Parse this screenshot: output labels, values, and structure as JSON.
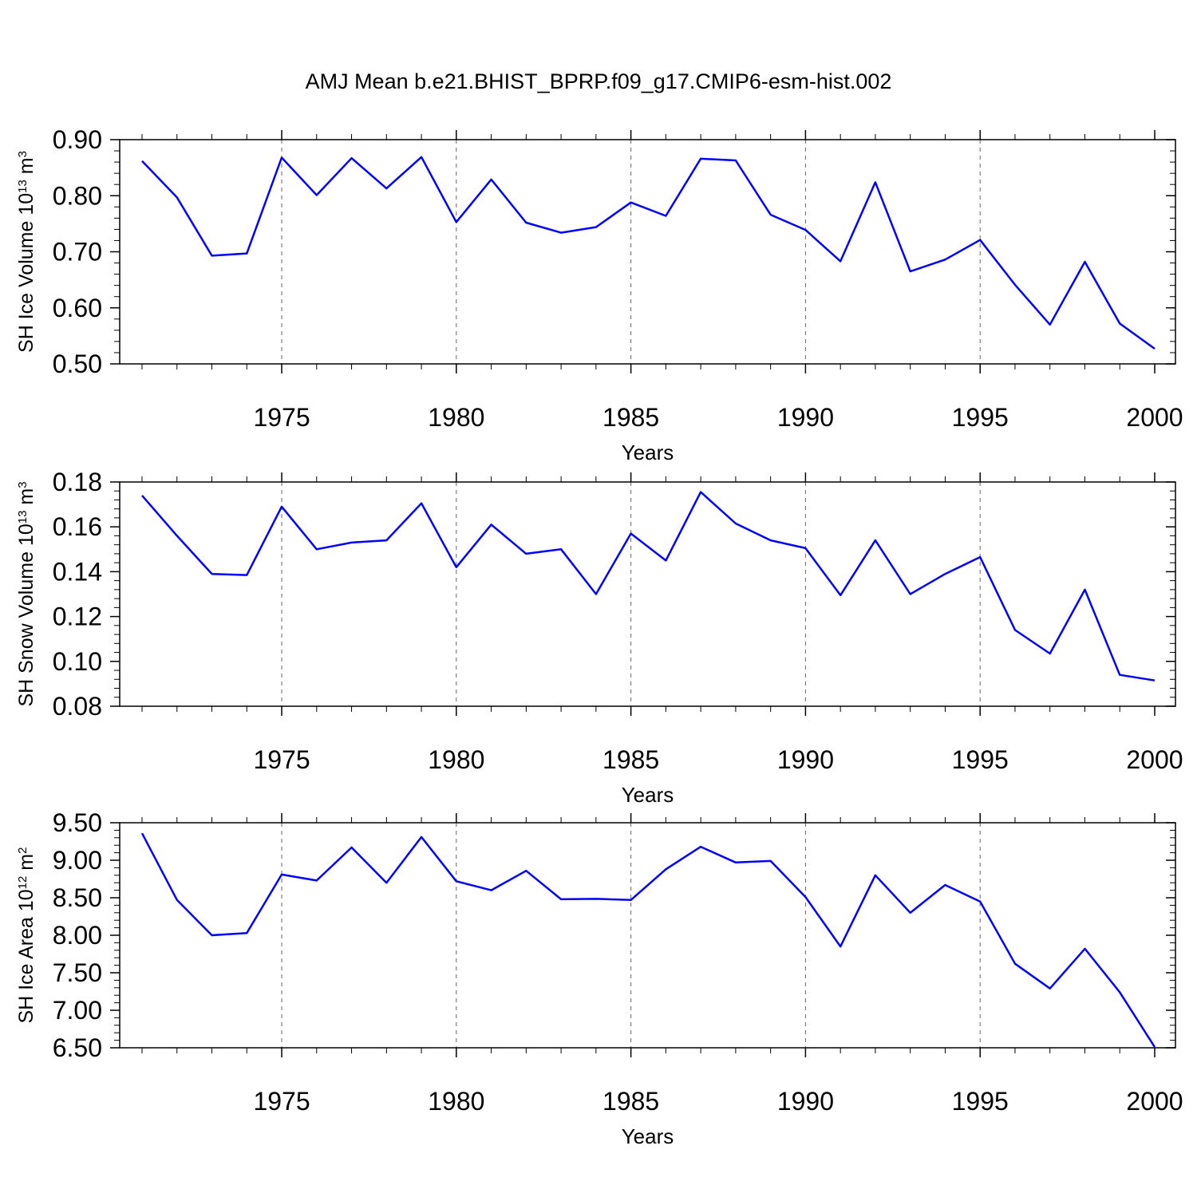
{
  "title": "AMJ Mean b.e21.BHIST_BPRP.f09_g17.CMIP6-esm-hist.002",
  "line_color": "#0000ff",
  "chart_data": [
    {
      "type": "line",
      "ylabel": {
        "text": "SH Ice Volume 10",
        "exp": "13",
        "unit": " m",
        "unit_exp": "3"
      },
      "xlabel": "Years",
      "xlim": [
        1971,
        2000
      ],
      "ylim": [
        0.5,
        0.9
      ],
      "yticks": [
        0.5,
        0.6,
        0.7,
        0.8,
        0.9
      ],
      "ytick_labels": [
        "0.50",
        "0.60",
        "0.70",
        "0.80",
        "0.90"
      ],
      "xticks": [
        1975,
        1980,
        1985,
        1990,
        1995,
        2000
      ],
      "xtick_labels": [
        "1975",
        "1980",
        "1985",
        "1990",
        "1995",
        "2000"
      ],
      "y_minor_step": 0.02,
      "grid": "x-dashed",
      "x": [
        1971,
        1972,
        1973,
        1974,
        1975,
        1976,
        1977,
        1978,
        1979,
        1980,
        1981,
        1982,
        1983,
        1984,
        1985,
        1986,
        1987,
        1988,
        1989,
        1990,
        1991,
        1992,
        1993,
        1994,
        1995,
        1996,
        1997,
        1998,
        1999,
        2000
      ],
      "y": [
        0.862,
        0.797,
        0.693,
        0.697,
        0.868,
        0.801,
        0.867,
        0.813,
        0.869,
        0.753,
        0.829,
        0.752,
        0.734,
        0.744,
        0.788,
        0.764,
        0.866,
        0.863,
        0.766,
        0.739,
        0.683,
        0.824,
        0.665,
        0.686,
        0.721,
        0.641,
        0.57,
        0.682,
        0.572,
        0.527
      ]
    },
    {
      "type": "line",
      "ylabel": {
        "text": "SH Snow Volume 10",
        "exp": "13",
        "unit": " m",
        "unit_exp": "3"
      },
      "xlabel": "Years",
      "xlim": [
        1971,
        2000
      ],
      "ylim": [
        0.08,
        0.18
      ],
      "yticks": [
        0.08,
        0.1,
        0.12,
        0.14,
        0.16,
        0.18
      ],
      "ytick_labels": [
        "0.08",
        "0.10",
        "0.12",
        "0.14",
        "0.16",
        "0.18"
      ],
      "xticks": [
        1975,
        1980,
        1985,
        1990,
        1995,
        2000
      ],
      "xtick_labels": [
        "1975",
        "1980",
        "1985",
        "1990",
        "1995",
        "2000"
      ],
      "y_minor_step": 0.004,
      "grid": "x-dashed",
      "x": [
        1971,
        1972,
        1973,
        1974,
        1975,
        1976,
        1977,
        1978,
        1979,
        1980,
        1981,
        1982,
        1983,
        1984,
        1985,
        1986,
        1987,
        1988,
        1989,
        1990,
        1991,
        1992,
        1993,
        1994,
        1995,
        1996,
        1997,
        1998,
        1999,
        2000
      ],
      "y": [
        0.174,
        0.156,
        0.139,
        0.1385,
        0.169,
        0.15,
        0.153,
        0.154,
        0.1705,
        0.142,
        0.161,
        0.148,
        0.15,
        0.13,
        0.157,
        0.145,
        0.1755,
        0.1615,
        0.154,
        0.1505,
        0.1295,
        0.154,
        0.13,
        0.139,
        0.1465,
        0.114,
        0.1035,
        0.132,
        0.094,
        0.0915
      ]
    },
    {
      "type": "line",
      "ylabel": {
        "text": "SH Ice Area 10",
        "exp": "12",
        "unit": " m",
        "unit_exp": "2"
      },
      "xlabel": "Years",
      "xlim": [
        1971,
        2000
      ],
      "ylim": [
        6.5,
        9.5
      ],
      "yticks": [
        6.5,
        7.0,
        7.5,
        8.0,
        8.5,
        9.0,
        9.5
      ],
      "ytick_labels": [
        "6.50",
        "7.00",
        "7.50",
        "8.00",
        "8.50",
        "9.00",
        "9.50"
      ],
      "xticks": [
        1975,
        1980,
        1985,
        1990,
        1995,
        2000
      ],
      "xtick_labels": [
        "1975",
        "1980",
        "1985",
        "1990",
        "1995",
        "2000"
      ],
      "y_minor_step": 0.1,
      "grid": "x-dashed",
      "x": [
        1971,
        1972,
        1973,
        1974,
        1975,
        1976,
        1977,
        1978,
        1979,
        1980,
        1981,
        1982,
        1983,
        1984,
        1985,
        1986,
        1987,
        1988,
        1989,
        1990,
        1991,
        1992,
        1993,
        1994,
        1995,
        1996,
        1997,
        1998,
        1999,
        2000
      ],
      "y": [
        9.36,
        8.47,
        8.0,
        8.03,
        8.81,
        8.73,
        9.17,
        8.7,
        9.31,
        8.72,
        8.6,
        8.86,
        8.48,
        8.485,
        8.47,
        8.88,
        9.18,
        8.97,
        8.99,
        8.51,
        7.85,
        8.8,
        8.3,
        8.67,
        8.45,
        7.62,
        7.29,
        7.82,
        7.24,
        6.51
      ]
    }
  ]
}
